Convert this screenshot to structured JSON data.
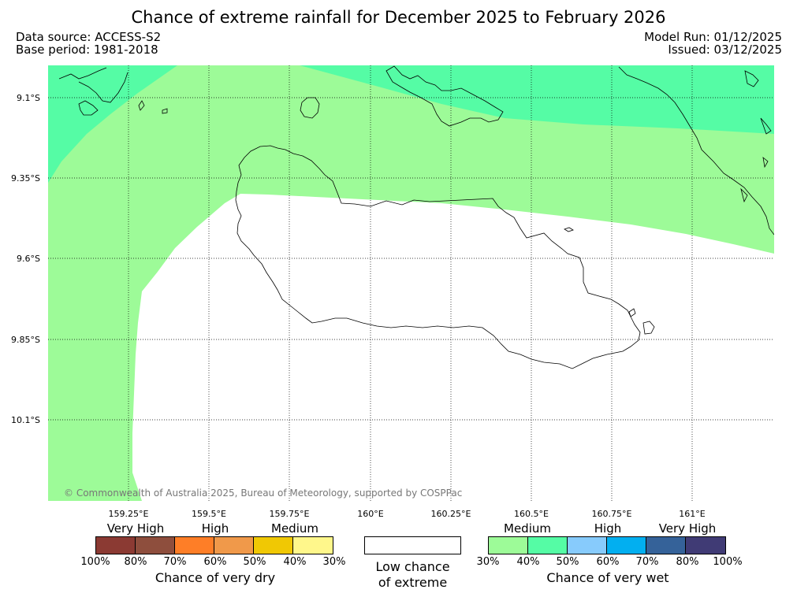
{
  "header": {
    "title": "Chance of extreme rainfall for December 2025 to February 2026",
    "data_source": "Data source: ACCESS-S2",
    "base_period": "Base period: 1981-2018",
    "model_run": "Model Run: 01/12/2025",
    "issued": "Issued: 03/12/2025"
  },
  "map": {
    "lat_ticks": [
      "9.1°S",
      "9.35°S",
      "9.6°S",
      "9.85°S",
      "10.1°S"
    ],
    "lon_ticks": [
      "159.25°E",
      "159.5°E",
      "159.75°E",
      "160°E",
      "160.25°E",
      "160.5°E",
      "160.75°E",
      "161°E"
    ],
    "copyright": "© Commonwealth of Australia 2025, Bureau of Meteorology, supported by COSPPac",
    "colors": {
      "medium_wet": "#9dfb98",
      "high_wet": "#55fca5",
      "land_outline": "#000000",
      "grid": "#000000"
    }
  },
  "legend": {
    "dry": {
      "categories": [
        "Very High",
        "High",
        "Medium"
      ],
      "colors": [
        "#8b3a33",
        "#8e4e3d",
        "#fe7e27",
        "#f0994a",
        "#f0c804",
        "#fff78b"
      ],
      "percent_labels": [
        "100%",
        "80%",
        "70%",
        "60%",
        "50%",
        "40%",
        "30%"
      ],
      "title": "Chance of very dry"
    },
    "low": {
      "line1": "Low chance",
      "line2": "of extreme"
    },
    "wet": {
      "categories": [
        "Medium",
        "High",
        "Very High"
      ],
      "colors": [
        "#9dfb98",
        "#55fca5",
        "#87cbfc",
        "#02aff0",
        "#356299",
        "#403b75"
      ],
      "percent_labels": [
        "30%",
        "40%",
        "50%",
        "60%",
        "70%",
        "80%",
        "100%"
      ],
      "title": "Chance of very wet"
    }
  }
}
